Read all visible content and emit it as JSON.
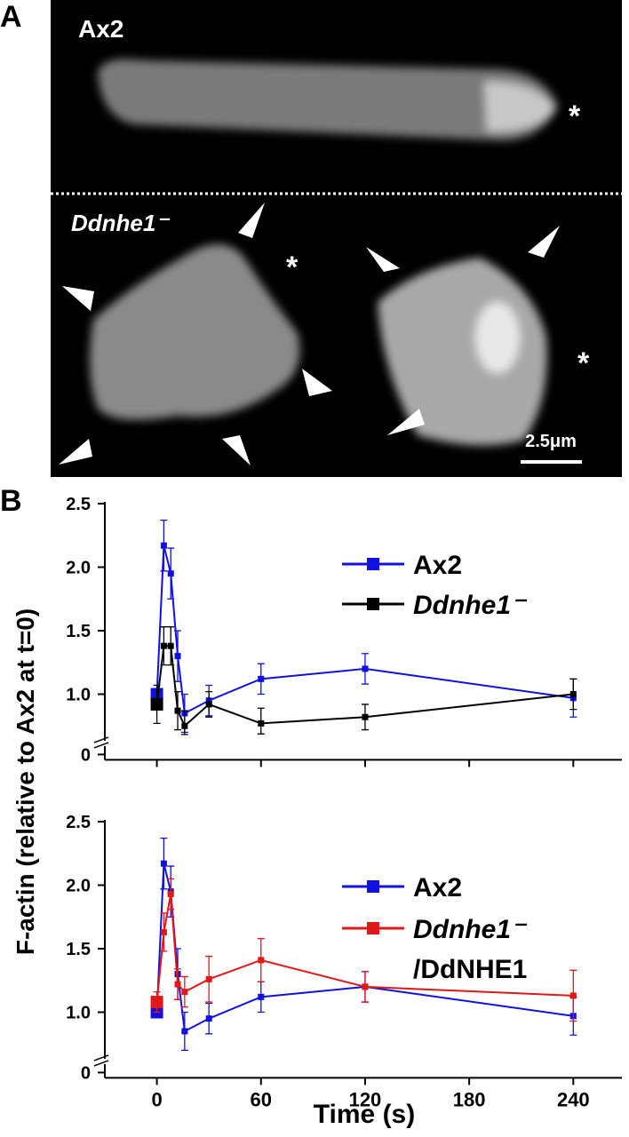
{
  "panel_a": {
    "label": "A",
    "top_cell": "Ax2",
    "bottom_cells": "Ddnhe1⁻",
    "asterisk": "*",
    "scale_bar": "2.5μm"
  },
  "panel_b_label": "B",
  "chart_data": [
    {
      "type": "line",
      "ylabel": "F-actin (relative to Ax2 at t=0)",
      "x": [
        0,
        4,
        8,
        12,
        16,
        30,
        60,
        120,
        240
      ],
      "series": [
        {
          "name": "Ax2",
          "color": "#1010e0",
          "values": [
            1.0,
            2.17,
            1.95,
            1.3,
            0.85,
            0.95,
            1.12,
            1.2,
            0.97
          ],
          "errors": [
            0,
            0.2,
            0.2,
            0.2,
            0.15,
            0.12,
            0.12,
            0.12,
            0.15
          ]
        },
        {
          "name": "Ddnhe1⁻",
          "color": "#000000",
          "values": [
            0.92,
            1.38,
            1.38,
            0.87,
            0.75,
            0.92,
            0.77,
            0.82,
            1.0
          ],
          "errors": [
            0.15,
            0.15,
            0.15,
            0.15,
            0.12,
            0.1,
            0.12,
            0.1,
            0.12
          ]
        }
      ],
      "xlim": [
        -30,
        268
      ],
      "xticks": [
        0,
        60,
        120,
        180,
        240
      ],
      "xtick_labels": false,
      "ylim": [
        0,
        2.5
      ],
      "y_break": 0.7,
      "yticks": [
        0,
        {
          "value": 1,
          "label": "1.0"
        },
        1.5,
        {
          "value": 2,
          "label": "2.0"
        },
        2.5
      ]
    },
    {
      "type": "line",
      "xlabel": "Time (s)",
      "x": [
        0,
        4,
        8,
        12,
        16,
        30,
        60,
        120,
        240
      ],
      "series": [
        {
          "name": "Ax2",
          "color": "#1010e0",
          "values": [
            1.0,
            2.17,
            1.95,
            1.3,
            0.85,
            0.95,
            1.12,
            1.2,
            0.97
          ],
          "errors": [
            0,
            0.2,
            0.2,
            0.2,
            0.15,
            0.12,
            0.12,
            0.12,
            0.15
          ]
        },
        {
          "name": "Ddnhe1⁻/DdNHE1",
          "color": "#e01818",
          "values": [
            1.08,
            1.63,
            1.93,
            1.22,
            1.16,
            1.26,
            1.41,
            1.2,
            1.13
          ],
          "errors": [
            0.08,
            0.15,
            0.12,
            0.12,
            0.12,
            0.18,
            0.17,
            0.12,
            0.2
          ]
        }
      ],
      "xlim": [
        -30,
        268
      ],
      "xticks": [
        0,
        60,
        120,
        180,
        240
      ],
      "xtick_labels": true,
      "ylim": [
        0,
        2.5
      ],
      "y_break": 0.7,
      "yticks": [
        0,
        {
          "value": 1,
          "label": "1.0"
        },
        1.5,
        {
          "value": 2,
          "label": "2.0"
        },
        2.5
      ]
    }
  ]
}
